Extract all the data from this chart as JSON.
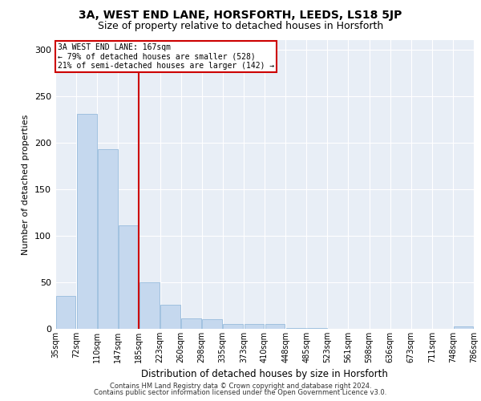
{
  "title1": "3A, WEST END LANE, HORSFORTH, LEEDS, LS18 5JP",
  "title2": "Size of property relative to detached houses in Horsforth",
  "xlabel": "Distribution of detached houses by size in Horsforth",
  "ylabel": "Number of detached properties",
  "bar_color": "#c5d8ee",
  "bar_edge_color": "#8ab4d8",
  "bar_heights": [
    35,
    231,
    193,
    111,
    50,
    26,
    11,
    10,
    5,
    5,
    5,
    1,
    1,
    0,
    0,
    0,
    0,
    0,
    0,
    3
  ],
  "x_labels": [
    "35sqm",
    "72sqm",
    "110sqm",
    "147sqm",
    "185sqm",
    "223sqm",
    "260sqm",
    "298sqm",
    "335sqm",
    "373sqm",
    "410sqm",
    "448sqm",
    "485sqm",
    "523sqm",
    "561sqm",
    "598sqm",
    "636sqm",
    "673sqm",
    "711sqm",
    "748sqm",
    "786sqm"
  ],
  "n_bars": 20,
  "red_line_x": 3.5,
  "annotation_text": "3A WEST END LANE: 167sqm\n← 79% of detached houses are smaller (528)\n21% of semi-detached houses are larger (142) →",
  "annotation_box_color": "#ffffff",
  "annotation_border_color": "#cc0000",
  "ylim": [
    0,
    310
  ],
  "yticks": [
    0,
    50,
    100,
    150,
    200,
    250,
    300
  ],
  "footer_line1": "Contains HM Land Registry data © Crown copyright and database right 2024.",
  "footer_line2": "Contains public sector information licensed under the Open Government Licence v3.0.",
  "bg_color": "#e8eef6",
  "grid_color": "#ffffff",
  "title1_fontsize": 10,
  "title2_fontsize": 9,
  "tick_fontsize": 7,
  "footer_fontsize": 6,
  "fig_bg_color": "#ffffff"
}
